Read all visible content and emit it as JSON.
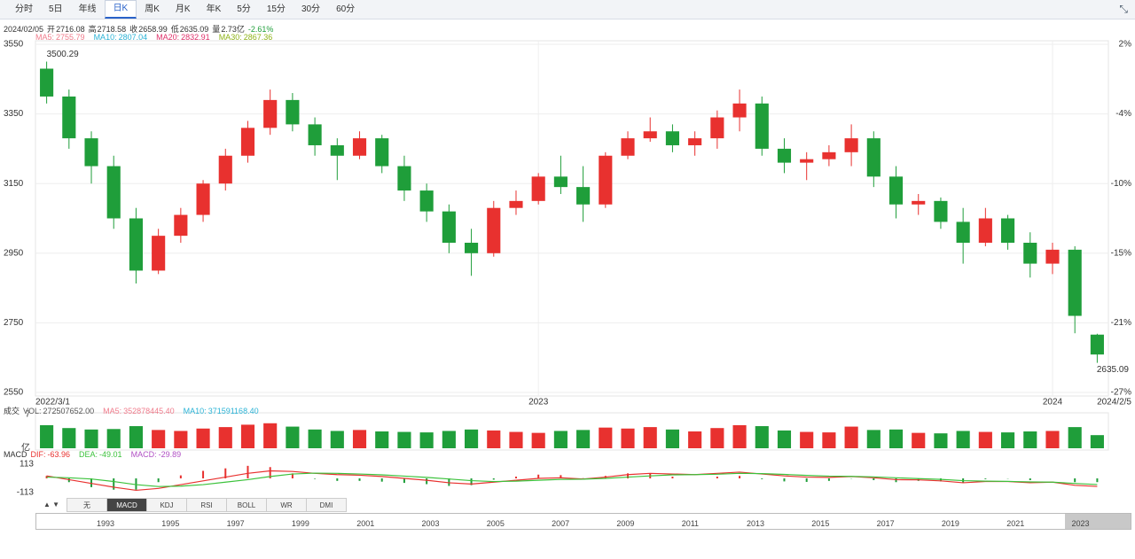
{
  "toolbar": {
    "tabs": [
      "分时",
      "5日",
      "年线",
      "日K",
      "周K",
      "月K",
      "年K",
      "5分",
      "15分",
      "30分",
      "60分"
    ],
    "active_index": 3
  },
  "info": {
    "date": "2024/02/05",
    "items": [
      {
        "label": "开",
        "value": 2716.08
      },
      {
        "label": "高",
        "value": 2718.58
      },
      {
        "label": "收",
        "value": 2658.99
      },
      {
        "label": "低",
        "value": 2635.09
      },
      {
        "label": "量",
        "value": "2.73亿"
      }
    ],
    "change": "-2.61%"
  },
  "ma": [
    {
      "label": "MA5:",
      "value": 2755.79,
      "color": "#f07c8c"
    },
    {
      "label": "MA10:",
      "value": 2807.04,
      "color": "#2bb3d6"
    },
    {
      "label": "MA20:",
      "value": 2832.91,
      "color": "#e0306a"
    },
    {
      "label": "MA30:",
      "value": 2867.36,
      "color": "#8fb318"
    }
  ],
  "chart_data": {
    "type": "candlestick",
    "categories": [
      "2022/3/1",
      null,
      null,
      null,
      null,
      null,
      null,
      null,
      null,
      null,
      null,
      null,
      null,
      null,
      null,
      null,
      null,
      null,
      null,
      null,
      null,
      null,
      "2023",
      null,
      null,
      null,
      null,
      null,
      null,
      null,
      null,
      null,
      null,
      null,
      null,
      null,
      null,
      null,
      null,
      null,
      null,
      null,
      null,
      null,
      null,
      "2024",
      null,
      "2024/2/5"
    ],
    "open": [
      3480,
      3400,
      3280,
      3200,
      3050,
      2900,
      3000,
      3060,
      3150,
      3230,
      3310,
      3390,
      3320,
      3260,
      3230,
      3280,
      3200,
      3130,
      3070,
      2980,
      2950,
      3080,
      3100,
      3170,
      3140,
      3090,
      3230,
      3280,
      3300,
      3260,
      3280,
      3340,
      3380,
      3250,
      3210,
      3220,
      3240,
      3280,
      3170,
      3090,
      3100,
      3040,
      2980,
      3050,
      2980,
      2920,
      2960,
      2716.08
    ],
    "high": [
      3500.29,
      3420,
      3300,
      3230,
      3080,
      3020,
      3080,
      3160,
      3250,
      3330,
      3420,
      3410,
      3340,
      3280,
      3300,
      3290,
      3230,
      3150,
      3090,
      3020,
      3100,
      3130,
      3180,
      3230,
      3200,
      3240,
      3300,
      3340,
      3320,
      3300,
      3360,
      3420,
      3400,
      3280,
      3240,
      3260,
      3320,
      3300,
      3200,
      3120,
      3110,
      3080,
      3080,
      3060,
      3010,
      2980,
      2970,
      2718.58
    ],
    "low": [
      3380,
      3250,
      3150,
      3020,
      2863,
      2890,
      2980,
      3040,
      3130,
      3210,
      3290,
      3300,
      3230,
      3160,
      3220,
      3180,
      3100,
      3040,
      2950,
      2885,
      2940,
      3060,
      3090,
      3120,
      3040,
      3080,
      3220,
      3270,
      3240,
      3230,
      3250,
      3300,
      3230,
      3180,
      3160,
      3200,
      3200,
      3140,
      3050,
      3060,
      3020,
      2920,
      2970,
      2960,
      2880,
      2890,
      2720,
      2635.09
    ],
    "close": [
      3400,
      3280,
      3200,
      3050,
      2900,
      3000,
      3060,
      3150,
      3230,
      3310,
      3390,
      3320,
      3260,
      3230,
      3280,
      3200,
      3130,
      3070,
      2980,
      2950,
      3080,
      3100,
      3170,
      3140,
      3090,
      3230,
      3280,
      3300,
      3260,
      3280,
      3340,
      3380,
      3250,
      3210,
      3220,
      3240,
      3280,
      3170,
      3090,
      3100,
      3040,
      2980,
      3050,
      2980,
      2920,
      2960,
      2770,
      2658.99
    ],
    "up_color": "#e8312f",
    "down_color": "#1f9e3a",
    "ylim": [
      2550,
      3550
    ],
    "yticks": [
      3550,
      3350,
      3150,
      2950,
      2750,
      2550
    ],
    "right_labels": [
      "2%",
      "-4%",
      "-10%",
      "-15%",
      "-21%",
      "-27%"
    ],
    "annotations": [
      3500.29,
      2635.09
    ],
    "volume": {
      "title": "成交",
      "legend": [
        {
          "label": "VOL:",
          "value": "272507652.00",
          "color": "#555555"
        },
        {
          "label": "MA5:",
          "value": "352878445.40",
          "color": "#f07c8c"
        },
        {
          "label": "MA10:",
          "value": "371591168.40",
          "color": "#2bb3d6"
        }
      ],
      "unit": "亿",
      "ylim": [
        0,
        7
      ],
      "yticks": [
        7
      ],
      "values": [
        4.8,
        4.2,
        3.9,
        4.0,
        4.6,
        3.8,
        3.6,
        4.1,
        4.4,
        4.9,
        5.2,
        4.5,
        3.9,
        3.6,
        3.8,
        3.5,
        3.4,
        3.3,
        3.6,
        3.9,
        3.7,
        3.4,
        3.2,
        3.6,
        3.8,
        4.3,
        4.1,
        4.4,
        3.9,
        3.5,
        4.2,
        4.8,
        4.6,
        3.7,
        3.4,
        3.3,
        4.5,
        3.8,
        3.9,
        3.2,
        3.1,
        3.6,
        3.4,
        3.3,
        3.5,
        3.6,
        4.4,
        2.73
      ]
    },
    "macd": {
      "title": "MACD",
      "legend": [
        {
          "label": "DIF:",
          "value": -63.96,
          "color": "#e8312f"
        },
        {
          "label": "DEA:",
          "value": -49.01,
          "color": "#3cc23c"
        },
        {
          "label": "MACD:",
          "value": -29.89,
          "color": "#b04fc4"
        }
      ],
      "ylim": [
        -113,
        113
      ],
      "yticks": [
        113,
        -113
      ],
      "dif_color": "#e8312f",
      "dea_color": "#3cc23c",
      "dif": [
        20,
        -10,
        -40,
        -70,
        -95,
        -80,
        -50,
        -20,
        10,
        40,
        60,
        55,
        40,
        30,
        25,
        15,
        0,
        -15,
        -35,
        -45,
        -30,
        -15,
        0,
        5,
        -5,
        10,
        30,
        40,
        35,
        30,
        40,
        50,
        35,
        20,
        10,
        8,
        15,
        5,
        -10,
        -12,
        -20,
        -35,
        -25,
        -25,
        -35,
        -30,
        -55,
        -63.96
      ],
      "dea": [
        10,
        5,
        -5,
        -25,
        -50,
        -65,
        -62,
        -50,
        -30,
        -10,
        15,
        35,
        42,
        40,
        35,
        28,
        18,
        8,
        -5,
        -18,
        -25,
        -22,
        -15,
        -8,
        -6,
        0,
        10,
        20,
        28,
        30,
        33,
        40,
        38,
        32,
        24,
        18,
        16,
        12,
        5,
        -2,
        -8,
        -18,
        -22,
        -24,
        -28,
        -30,
        -40,
        -49.01
      ],
      "values": [
        20,
        -30,
        -70,
        -90,
        -90,
        -30,
        24,
        60,
        80,
        100,
        90,
        40,
        -4,
        -20,
        -20,
        -26,
        -36,
        -46,
        -60,
        -54,
        -10,
        14,
        30,
        26,
        2,
        20,
        40,
        40,
        14,
        0,
        14,
        20,
        -6,
        -24,
        -28,
        -20,
        -2,
        -14,
        -30,
        -20,
        -24,
        -34,
        -6,
        -2,
        -14,
        0,
        -30,
        -29.89
      ]
    }
  },
  "bottom_tabs": {
    "tabs": [
      "无",
      "MACD",
      "KDJ",
      "RSI",
      "BOLL",
      "WR",
      "DMI"
    ],
    "active_index": 1
  },
  "navigator": {
    "years": [
      "1993",
      "1995",
      "1997",
      "1999",
      "2001",
      "2003",
      "2005",
      "2007",
      "2009",
      "2011",
      "2013",
      "2015",
      "2017",
      "2019",
      "2021",
      "2023"
    ]
  }
}
